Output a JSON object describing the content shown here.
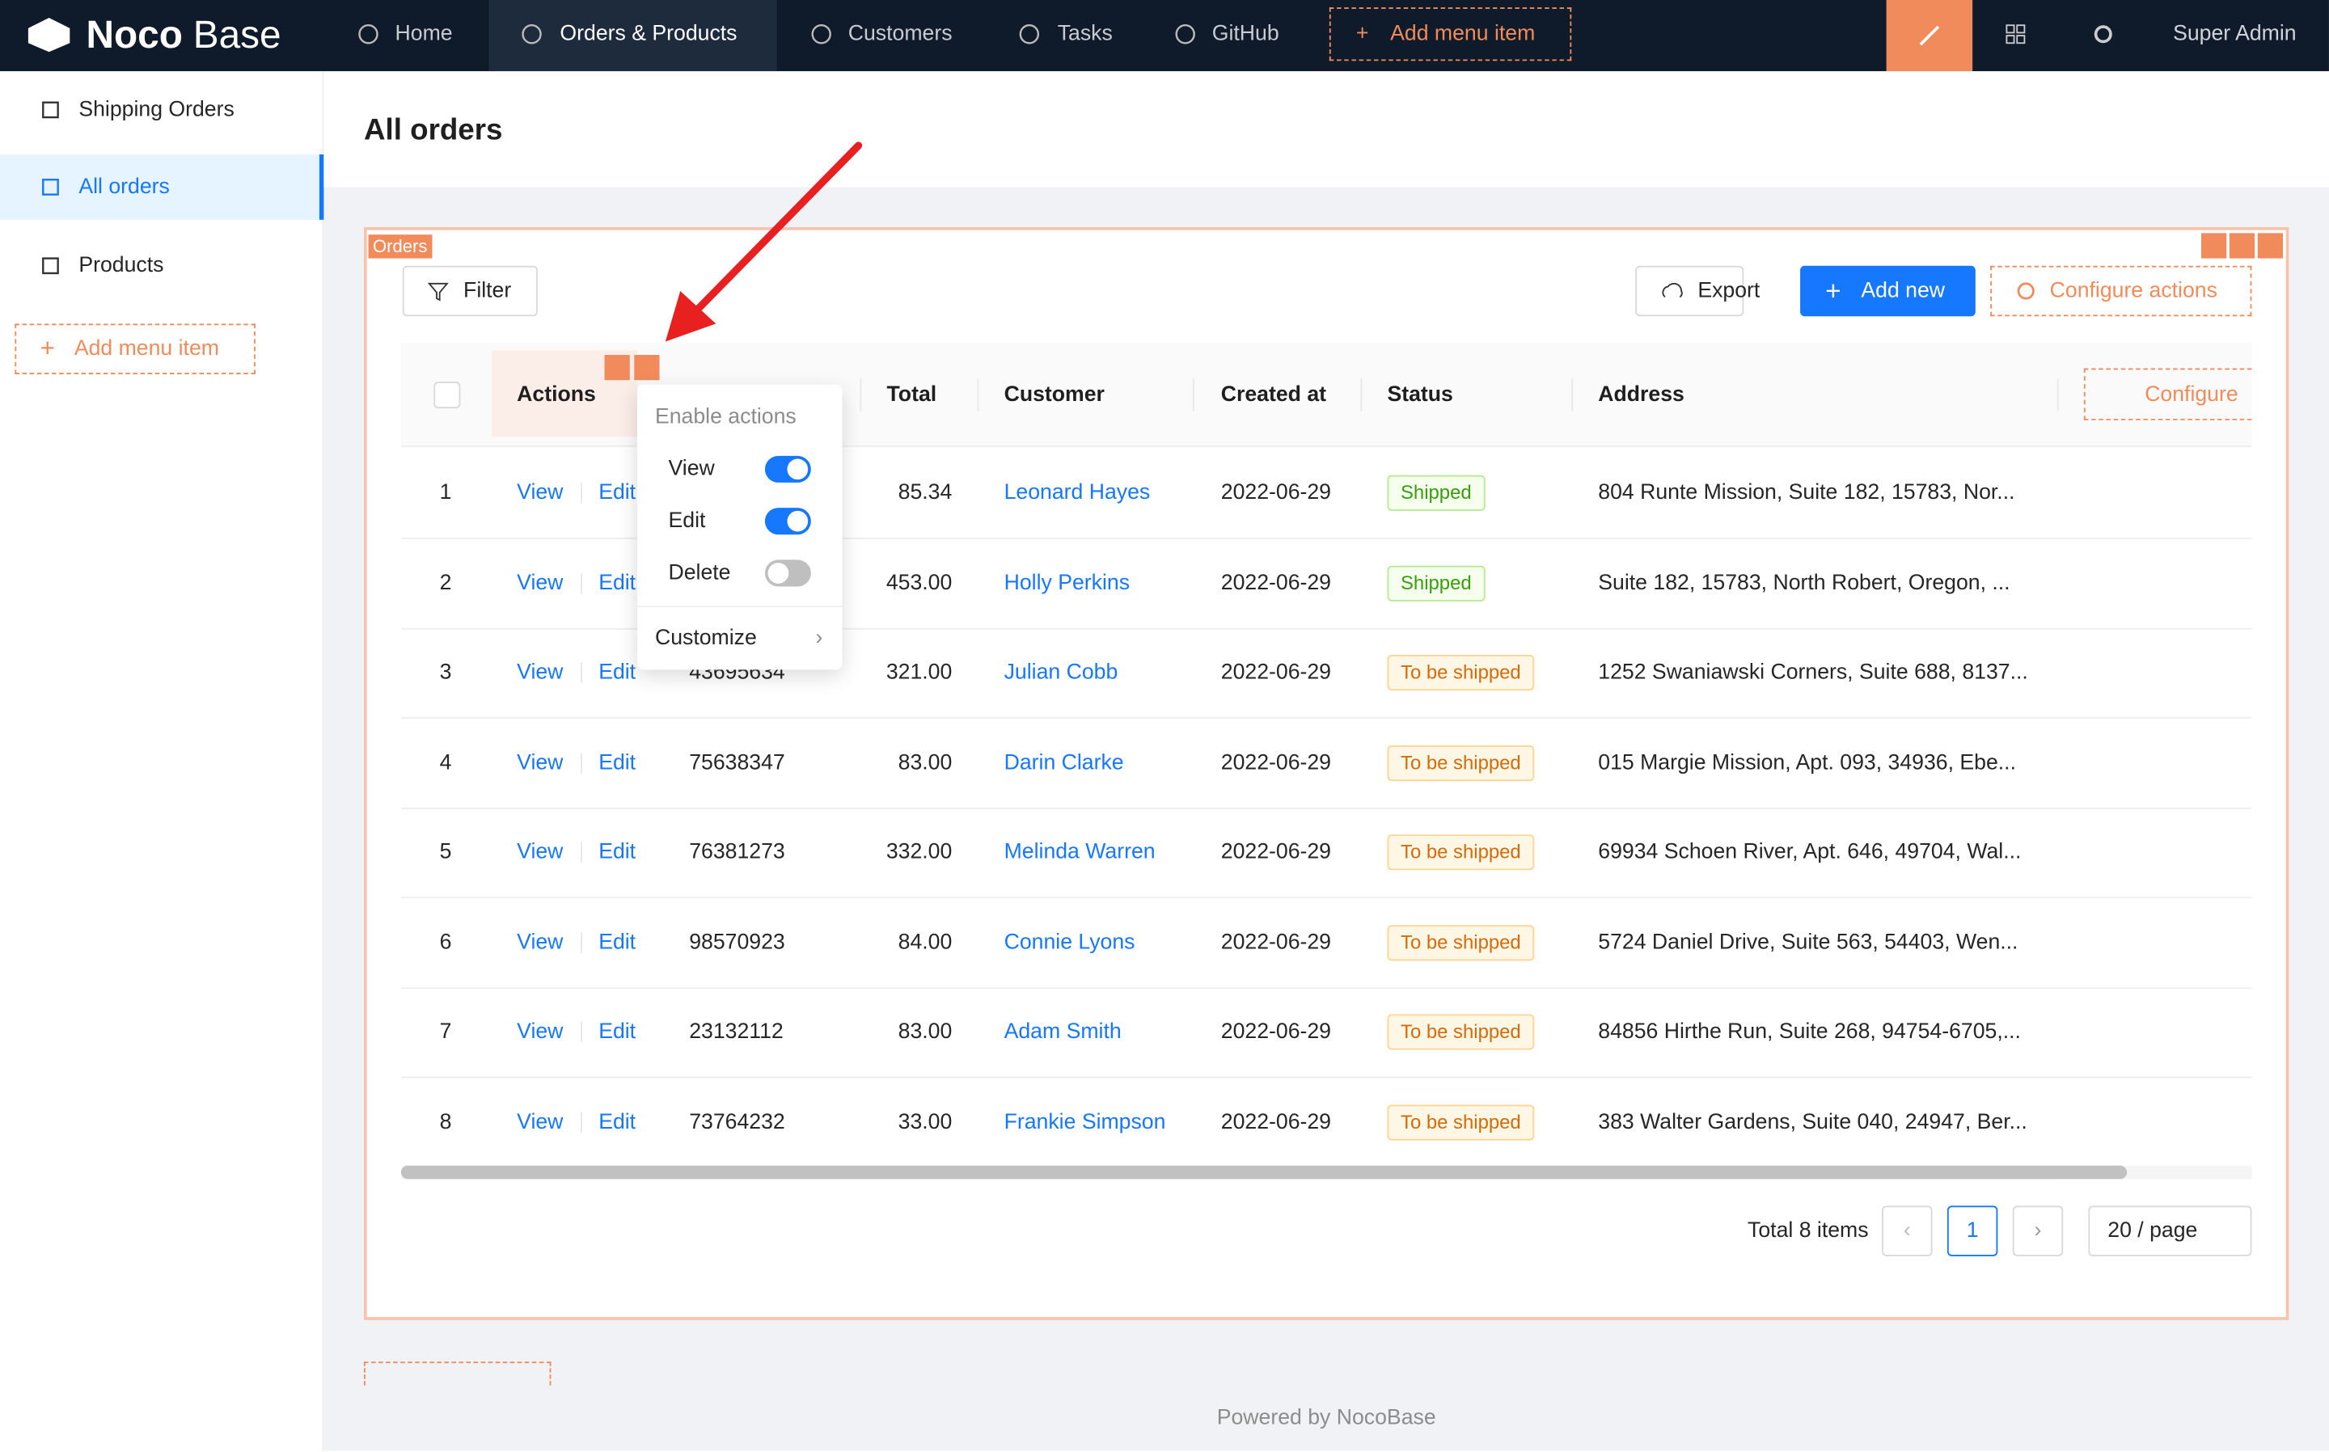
{
  "header": {
    "logo_bold": "Noco",
    "logo_light": "Base",
    "menu": [
      "Home",
      "Orders & Products",
      "Customers",
      "Tasks",
      "GitHub"
    ],
    "add_menu_item": "Add menu item",
    "user": "Super Admin"
  },
  "sidebar": {
    "items": [
      "Shipping Orders",
      "All orders",
      "Products"
    ],
    "add_menu_item": "Add menu item"
  },
  "page": {
    "title": "All orders",
    "footer": "Powered by NocoBase"
  },
  "block": {
    "tag": "Orders",
    "filter": "Filter",
    "export": "Export",
    "add_new": "Add new",
    "configure_actions": "Configure actions"
  },
  "table": {
    "columns": [
      "Actions",
      "Total",
      "Customer",
      "Created at",
      "Status",
      "Address"
    ],
    "configure": "Configure",
    "row_actions": [
      "View",
      "Edit"
    ],
    "statuses": [
      {
        "label": "Shipped",
        "color": "#389e0d",
        "background": "#f6ffed",
        "border": "#b7eb8f"
      },
      {
        "label": "To be shipped",
        "color": "#d46b08",
        "background": "#fff7e6",
        "border": "#ffd591"
      }
    ],
    "rows": [
      {
        "no": 1,
        "total": "85.34",
        "customer": "Leonard Hayes",
        "created": "2022-06-29",
        "status": "Shipped",
        "address": "804 Runte Mission, Suite 182, 15783, Nor..."
      },
      {
        "no": 2,
        "total": "453.00",
        "customer": "Holly Perkins",
        "created": "2022-06-29",
        "status": "Shipped",
        "address": "Suite 182, 15783, North Robert, Oregon, ..."
      },
      {
        "no": 3,
        "number": "43695634",
        "total": "321.00",
        "customer": "Julian Cobb",
        "created": "2022-06-29",
        "status": "To be shipped",
        "address": "1252 Swaniawski Corners, Suite 688, 8137..."
      },
      {
        "no": 4,
        "number": "75638347",
        "total": "83.00",
        "customer": "Darin Clarke",
        "created": "2022-06-29",
        "status": "To be shipped",
        "address": "015 Margie Mission, Apt. 093, 34936, Ebe..."
      },
      {
        "no": 5,
        "number": "76381273",
        "total": "332.00",
        "customer": "Melinda Warren",
        "created": "2022-06-29",
        "status": "To be shipped",
        "address": "69934 Schoen River, Apt. 646, 49704, Wal..."
      },
      {
        "no": 6,
        "number": "98570923",
        "total": "84.00",
        "customer": "Connie Lyons",
        "created": "2022-06-29",
        "status": "To be shipped",
        "address": "5724 Daniel Drive, Suite 563, 54403, Wen..."
      },
      {
        "no": 7,
        "number": "23132112",
        "total": "83.00",
        "customer": "Adam Smith",
        "created": "2022-06-29",
        "status": "To be shipped",
        "address": "84856 Hirthe Run, Suite 268, 94754-6705,..."
      },
      {
        "no": 8,
        "number": "73764232",
        "total": "33.00",
        "customer": "Frankie Simpson",
        "created": "2022-06-29",
        "status": "To be shipped",
        "address": "383 Walter Gardens, Suite 040, 24947, Ber..."
      }
    ]
  },
  "pagination": {
    "total": "Total 8 items",
    "page": "1",
    "page_size": "20 / page"
  },
  "popup": {
    "title": "Enable actions",
    "toggles": [
      {
        "label": "View",
        "enabled": true
      },
      {
        "label": "Edit",
        "enabled": true
      },
      {
        "label": "Delete",
        "enabled": false
      }
    ],
    "customize": "Customize"
  }
}
